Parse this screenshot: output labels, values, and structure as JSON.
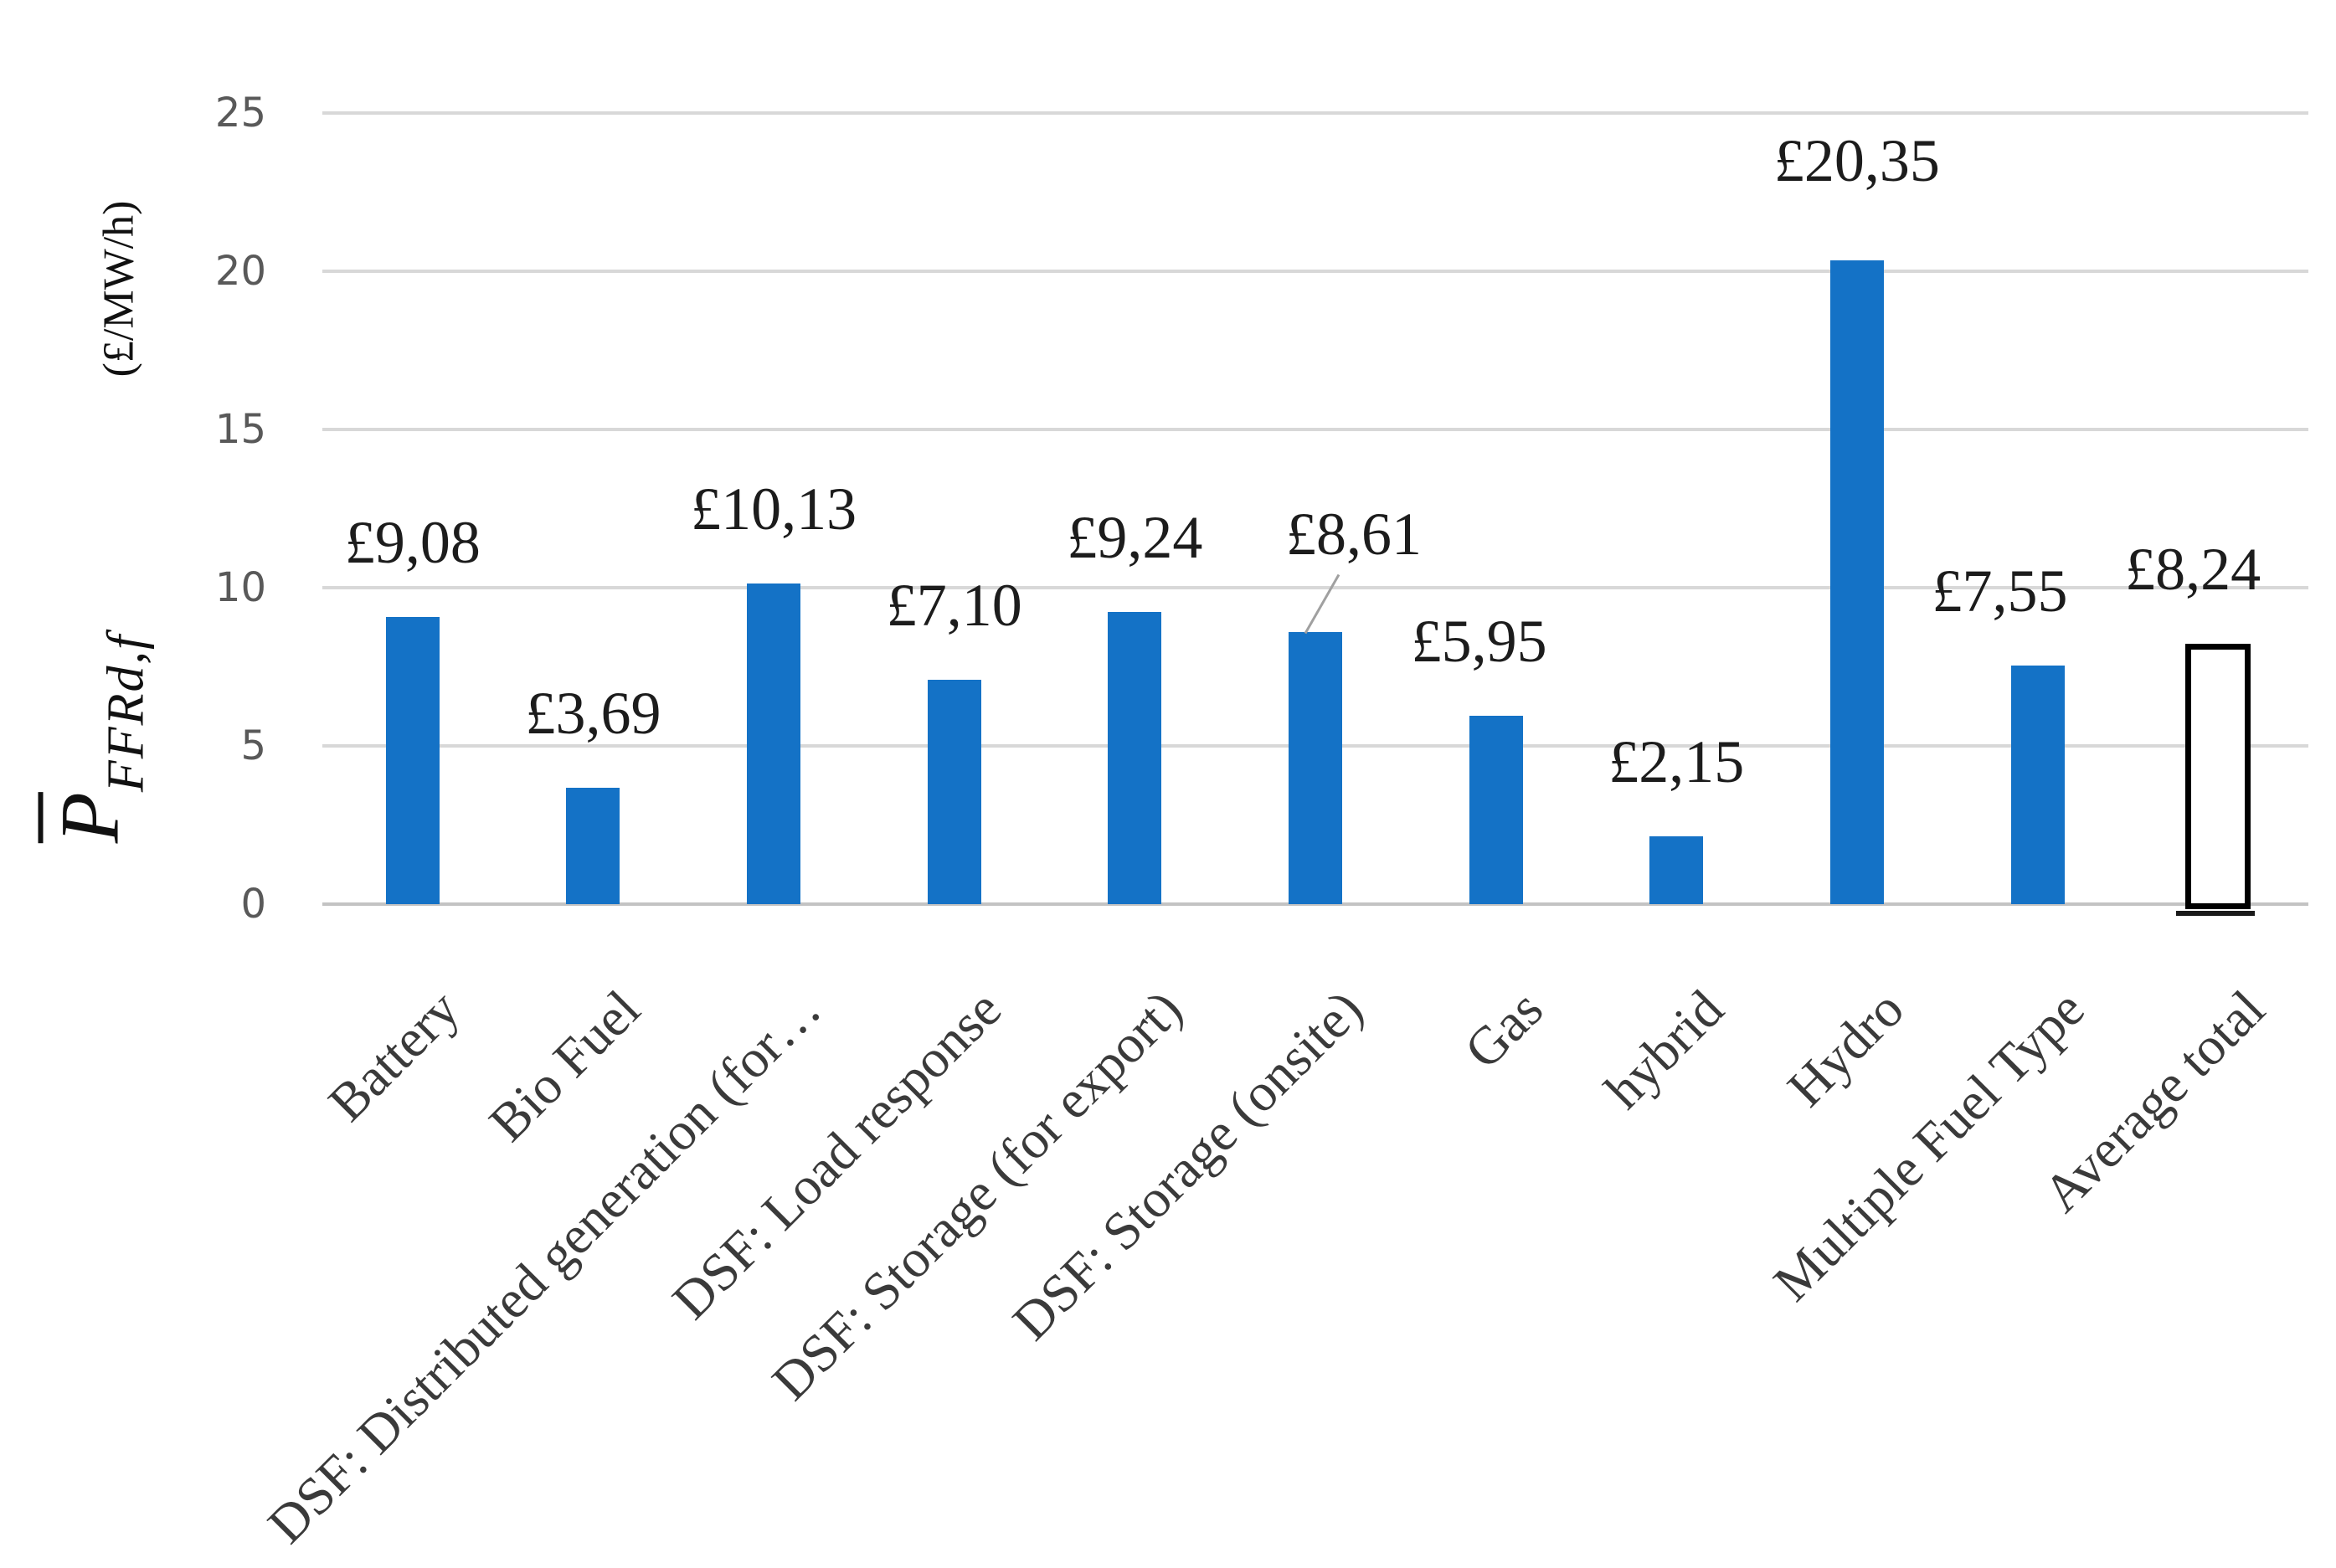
{
  "chart_data": {
    "type": "bar",
    "title": "",
    "y_axis": {
      "symbol": "P",
      "symbol_subscript": "FFRd,f",
      "unit": "(£/MW/h)",
      "ylim": [
        0,
        25
      ],
      "yticks": [
        "0",
        "5",
        "10",
        "15",
        "20",
        "25"
      ]
    },
    "grid": "horizontal",
    "legend": "none",
    "colors": {
      "bar": "#1472C6",
      "gridline": "#D8D8D8",
      "baseline": "#C3C3C3",
      "tick_text": "#595959",
      "value_label": "#1c1c1c",
      "category_label": "#3a3a3a",
      "leader_line": "#A0A0A0",
      "outlined_bar_border": "#000000"
    },
    "categories": [
      "Battery",
      "Bio Fuel",
      "DSF: Distributed generation (for…",
      "DSF: Load response",
      "DSF: Storage (for export)",
      "DSF: Storage (onsite)",
      "Gas",
      "hybrid",
      "Hydro",
      "Multiple Fuel Type",
      "Average total"
    ],
    "values": [
      9.08,
      3.69,
      10.13,
      7.1,
      9.24,
      8.61,
      5.95,
      2.15,
      20.35,
      7.55,
      8.24
    ],
    "points": [
      {
        "category": "Battery",
        "value": 9.08,
        "label": "£9,08"
      },
      {
        "category": "Bio Fuel",
        "value": 3.69,
        "label": "£3,69"
      },
      {
        "category": "DSF: Distributed generation (for…",
        "value": 10.13,
        "label": "£10,13"
      },
      {
        "category": "DSF: Load response",
        "value": 7.1,
        "label": "£7,10"
      },
      {
        "category": "DSF: Storage (for export)",
        "value": 9.24,
        "label": "£9,24"
      },
      {
        "category": "DSF: Storage (onsite)",
        "value": 8.61,
        "label": "£8,61",
        "label_dx": 46,
        "label_gap": 78,
        "callout": true
      },
      {
        "category": "Gas",
        "value": 5.95,
        "label": "£5,95",
        "label_dx": -20
      },
      {
        "category": "hybrid",
        "value": 2.15,
        "label": "£2,15"
      },
      {
        "category": "Hydro",
        "value": 20.35,
        "label": "£20,35",
        "label_gap": 80
      },
      {
        "category": "Multiple Fuel Type",
        "value": 7.55,
        "label": "£7,55",
        "label_dx": -45
      },
      {
        "category": "Average total",
        "value": 8.24,
        "label": "£8,24",
        "label_dx": -30,
        "outlined": true
      }
    ]
  }
}
